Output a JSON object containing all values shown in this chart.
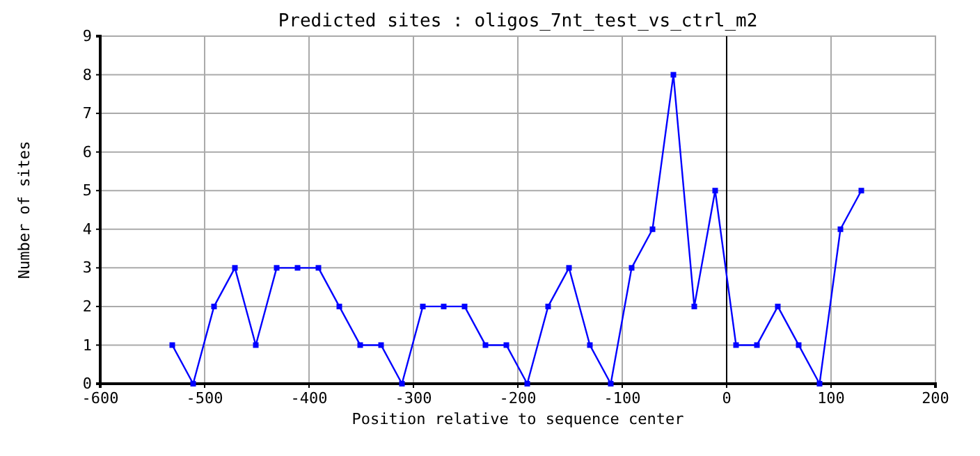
{
  "chart_data": {
    "type": "line",
    "title": "Predicted sites : oligos_7nt_test_vs_ctrl_m2",
    "xlabel": "Position relative to sequence center",
    "ylabel": "Number of sites",
    "x": [
      -531,
      -511,
      -491,
      -471,
      -451,
      -431,
      -411,
      -391,
      -371,
      -351,
      -331,
      -311,
      -291,
      -271,
      -251,
      -231,
      -211,
      -191,
      -171,
      -151,
      -131,
      -111,
      -91,
      -71,
      -51,
      -31,
      -11,
      9,
      29,
      49,
      69,
      89,
      109,
      129
    ],
    "series": [
      {
        "color": "#0000ff",
        "values": [
          1,
          0,
          2,
          3,
          1,
          3,
          3,
          3,
          2,
          1,
          1,
          0,
          2,
          2,
          2,
          1,
          1,
          0,
          2,
          3,
          1,
          0,
          3,
          4,
          8,
          2,
          5,
          1,
          1,
          2,
          1,
          0,
          4,
          5
        ]
      }
    ],
    "xlim": [
      -600,
      200
    ],
    "xticks": [
      -600,
      -500,
      -400,
      -300,
      -200,
      -100,
      0,
      100,
      200
    ],
    "ylim": [
      0,
      9
    ],
    "yticks": [
      0,
      1,
      2,
      3,
      4,
      5,
      6,
      7,
      8,
      9
    ],
    "grid": true,
    "marker": "square",
    "line_style": "solid",
    "ref_lines": [
      {
        "axis": "x",
        "value": 0,
        "color": "#000000"
      }
    ]
  }
}
